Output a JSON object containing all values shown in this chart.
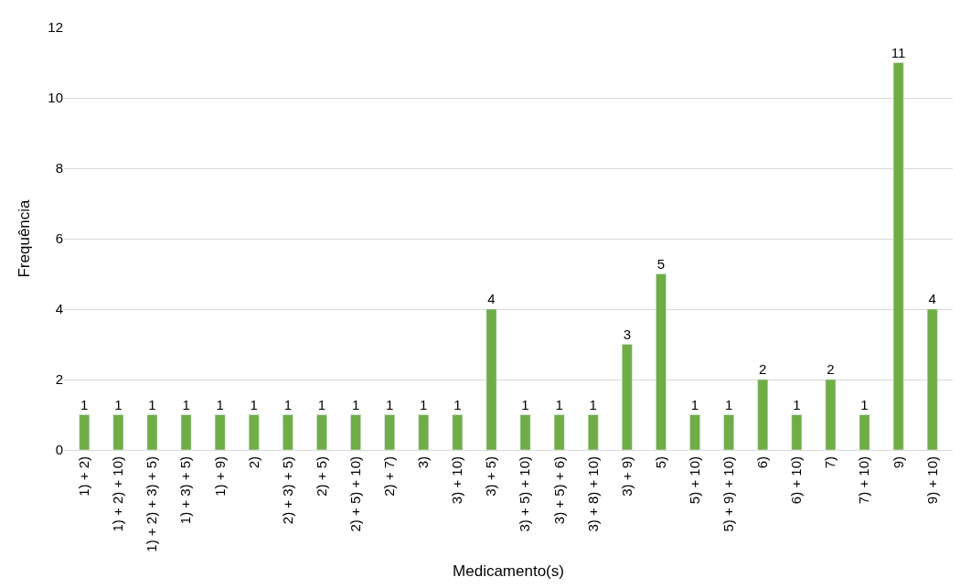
{
  "chart_data": {
    "type": "bar",
    "xlabel": "Medicamento(s)",
    "ylabel": "Frequência",
    "categories": [
      "1) + 2)",
      "1) + 2) + 10)",
      "1) + 2) + 3) + 5)",
      "1) + 3) + 5)",
      "1) + 9)",
      "2)",
      "2) + 3) + 5)",
      "2) + 5)",
      "2) + 5) + 10)",
      "2) + 7)",
      "3)",
      "3) + 10)",
      "3) + 5)",
      "3) + 5) + 10)",
      "3) + 5) + 6)",
      "3) + 8) + 10)",
      "3) + 9)",
      "5)",
      "5) + 10)",
      "5) + 9) + 10)",
      "6)",
      "6) + 10)",
      "7)",
      "7) + 10)",
      "9)",
      "9) + 10)"
    ],
    "values": [
      1,
      1,
      1,
      1,
      1,
      1,
      1,
      1,
      1,
      1,
      1,
      1,
      4,
      1,
      1,
      1,
      3,
      5,
      1,
      1,
      2,
      1,
      2,
      1,
      11,
      4
    ],
    "color": "#70ad47",
    "ylim": [
      0,
      12
    ],
    "yticks": [
      0,
      2,
      4,
      6,
      8,
      10,
      12
    ],
    "grid": "y",
    "data_labels": true,
    "legend": false
  }
}
